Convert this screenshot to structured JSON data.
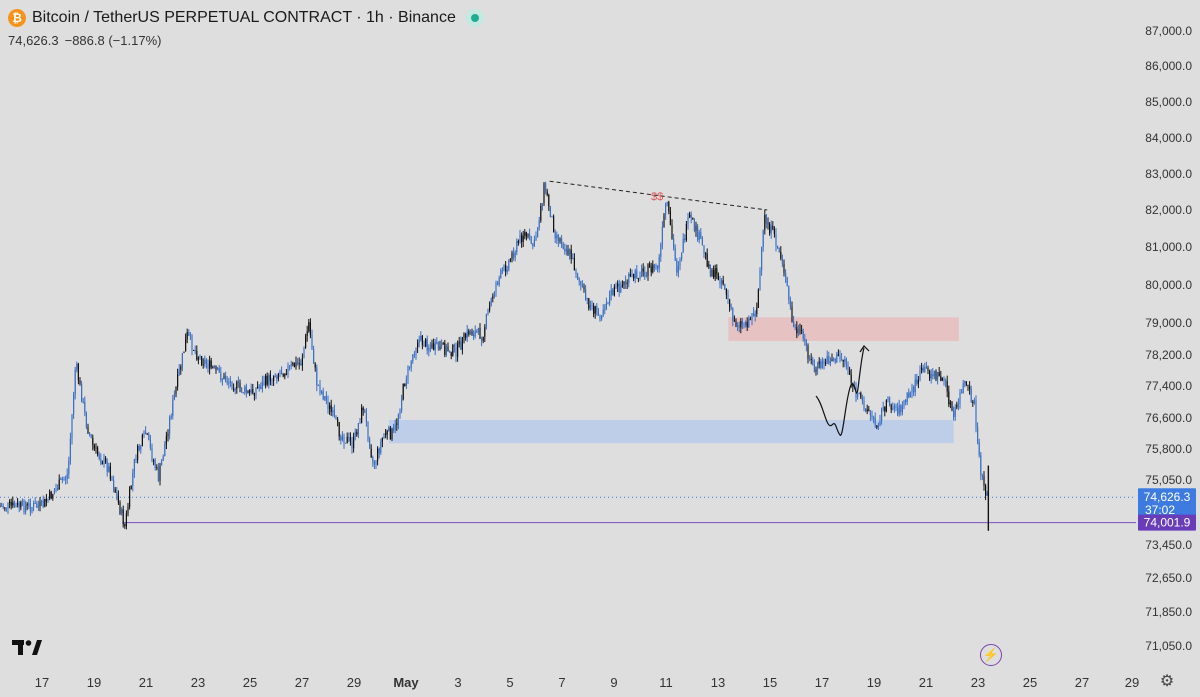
{
  "header": {
    "logo_letter": "₿",
    "title": "Bitcoin / TetherUS PERPETUAL CONTRACT · 1h · Binance",
    "last_price": "74,626.3",
    "change": "−886.8 (−1.17%)"
  },
  "price_tags": {
    "last": "74,626.3",
    "countdown": "37:02",
    "line": "74,001.9"
  },
  "annotation_text": "$$",
  "colors": {
    "background": "#dedede",
    "candle": "#3b6fc4",
    "candle_dark": "#111111",
    "supply_zone": "#e7bdbd",
    "demand_zone": "#b9cbea",
    "level_line": "#7a4fc0",
    "last_price_tag": "#3d7be0",
    "level_tag": "#6a3db8"
  },
  "icons": [
    "bitcoin-logo-icon",
    "status-dot-icon",
    "tradingview-logo-icon",
    "lightning-icon",
    "settings-gear-icon"
  ],
  "chart_data": {
    "type": "candlestick",
    "timeframe": "1h",
    "y_ticks": [
      "87,000.0",
      "86,000.0",
      "85,000.0",
      "84,000.0",
      "83,000.0",
      "82,000.0",
      "81,000.0",
      "80,000.0",
      "79,000.0",
      "78,200.0",
      "77,400.0",
      "76,600.0",
      "75,800.0",
      "75,050.0",
      "73,450.0",
      "72,650.0",
      "71,850.0",
      "71,050.0"
    ],
    "x_ticks": [
      "17",
      "19",
      "21",
      "23",
      "25",
      "27",
      "29",
      "May",
      "3",
      "5",
      "7",
      "9",
      "11",
      "13",
      "15",
      "17",
      "19",
      "21",
      "23",
      "25",
      "27",
      "29"
    ],
    "ylim": [
      70400,
      87400
    ],
    "price_path": [
      [
        "17",
        74400
      ],
      [
        "18",
        75200
      ],
      [
        "18.3",
        78000
      ],
      [
        "18.7",
        76500
      ],
      [
        "19",
        75800
      ],
      [
        "19.6",
        75300
      ],
      [
        "20.2",
        73900
      ],
      [
        "20.6",
        75600
      ],
      [
        "21",
        76200
      ],
      [
        "21.5",
        75100
      ],
      [
        "22",
        76800
      ],
      [
        "22.6",
        78700
      ],
      [
        "23",
        78200
      ],
      [
        "24",
        77600
      ],
      [
        "25",
        77200
      ],
      [
        "26",
        77700
      ],
      [
        "27",
        78000
      ],
      [
        "27.3",
        79000
      ],
      [
        "27.6",
        77500
      ],
      [
        "28",
        77000
      ],
      [
        "28.5",
        76200
      ],
      [
        "29",
        75900
      ],
      [
        "29.4",
        76900
      ],
      [
        "29.8",
        75400
      ],
      [
        "30.2",
        76200
      ],
      [
        "30.6",
        76200
      ],
      [
        "May",
        77500
      ],
      [
        "1.5",
        78600
      ],
      [
        "2",
        78400
      ],
      [
        "3",
        78300
      ],
      [
        "3.5",
        78800
      ],
      [
        "4",
        78700
      ],
      [
        "4.5",
        80000
      ],
      [
        "5",
        80600
      ],
      [
        "5.6",
        81400
      ],
      [
        "6",
        81000
      ],
      [
        "6.4",
        82700
      ],
      [
        "6.8",
        81400
      ],
      [
        "7.4",
        80800
      ],
      [
        "8",
        79600
      ],
      [
        "8.5",
        79200
      ],
      [
        "9",
        79800
      ],
      [
        "10",
        80300
      ],
      [
        "10.8",
        80500
      ],
      [
        "11.1",
        82300
      ],
      [
        "11.5",
        80400
      ],
      [
        "12",
        81800
      ],
      [
        "12.4",
        81200
      ],
      [
        "12.8",
        80400
      ],
      [
        "13.3",
        80100
      ],
      [
        "13.7",
        79000
      ],
      [
        "14.2",
        79000
      ],
      [
        "14.6",
        79400
      ],
      [
        "14.9",
        81800
      ],
      [
        "15.3",
        81200
      ],
      [
        "15.6",
        80600
      ],
      [
        "16",
        78900
      ],
      [
        "16.4",
        78600
      ],
      [
        "16.8",
        77800
      ],
      [
        "17.4",
        78100
      ],
      [
        "18",
        78100
      ],
      [
        "18.4",
        77200
      ],
      [
        "18.8",
        76900
      ],
      [
        "19.2",
        76400
      ],
      [
        "19.6",
        77000
      ],
      [
        "20.1",
        76800
      ],
      [
        "20.6",
        77300
      ],
      [
        "21",
        77800
      ],
      [
        "21.4",
        77700
      ],
      [
        "21.8",
        77600
      ],
      [
        "22.2",
        76600
      ],
      [
        "22.6",
        77500
      ],
      [
        "23",
        76900
      ],
      [
        "23.2",
        75400
      ],
      [
        "23.5",
        74600
      ]
    ],
    "annotations": [
      {
        "type": "dashed-trendline",
        "from": [
          "6.6",
          82800
        ],
        "to": [
          "15",
          82000
        ]
      },
      {
        "type": "supply-zone",
        "from": [
          "13.5",
          79150
        ],
        "to": [
          "22.4",
          78550
        ]
      },
      {
        "type": "demand-zone",
        "from": [
          "30.4",
          76550
        ],
        "to": [
          "22.2",
          75950
        ]
      },
      {
        "type": "horizontal-level",
        "price": 74001.9,
        "from": "20.1"
      },
      {
        "type": "dotted-last-price",
        "price": 74626.3
      }
    ]
  }
}
